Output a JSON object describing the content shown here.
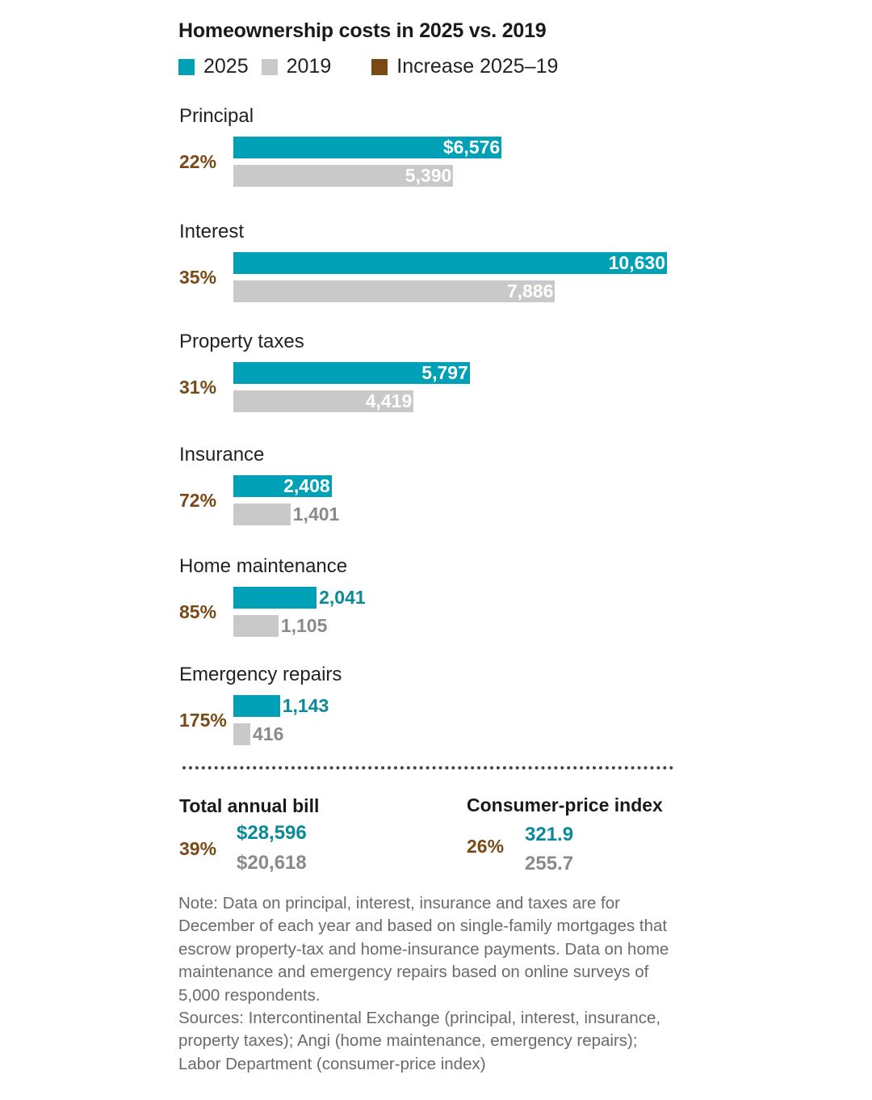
{
  "title": "Homeownership costs in 2025 vs. 2019",
  "legend": [
    {
      "label": "2025",
      "color": "#00a0b6"
    },
    {
      "label": "2019",
      "color": "#c9c9c9"
    },
    {
      "label": "Increase 2025–19",
      "color": "#7a4a16"
    }
  ],
  "chart_data": {
    "type": "bar",
    "title": "Homeownership costs in 2025 vs. 2019",
    "orientation": "horizontal",
    "categories": [
      "Principal",
      "Interest",
      "Property taxes",
      "Insurance",
      "Home maintenance",
      "Emergency repairs"
    ],
    "series": [
      {
        "name": "2025",
        "values": [
          6576,
          10630,
          5797,
          2408,
          2041,
          1143
        ],
        "labels": [
          "$6,576",
          "10,630",
          "5,797",
          "2,408",
          "2,041",
          "1,143"
        ]
      },
      {
        "name": "2019",
        "values": [
          5390,
          7886,
          4419,
          1401,
          1105,
          416
        ],
        "labels": [
          "5,390",
          "7,886",
          "4,419",
          "1,401",
          "1,105",
          "416"
        ]
      }
    ],
    "increase": [
      "22%",
      "35%",
      "31%",
      "72%",
      "85%",
      "175%"
    ],
    "xlim": [
      0,
      10630
    ],
    "grid": false,
    "legend_placement": "top-left"
  },
  "summary": {
    "total": {
      "title": "Total annual bill",
      "pct": "39%",
      "v2025": "$28,596",
      "v2019": "$20,618"
    },
    "cpi": {
      "title": "Consumer-price index",
      "pct": "26%",
      "v2025": "321.9",
      "v2019": "255.7"
    }
  },
  "note": "Note: Data on principal, interest, insurance and taxes are for December of each year and based on single-family mortgages that escrow property-tax and home-insurance payments. Data on home maintenance and emergency repairs based on online surveys of 5,000 respondents.",
  "sources": "Sources: Intercontinental Exchange (principal, interest, insurance, property taxes); Angi (home maintenance, emergency repairs); Labor Department (consumer-price index)"
}
